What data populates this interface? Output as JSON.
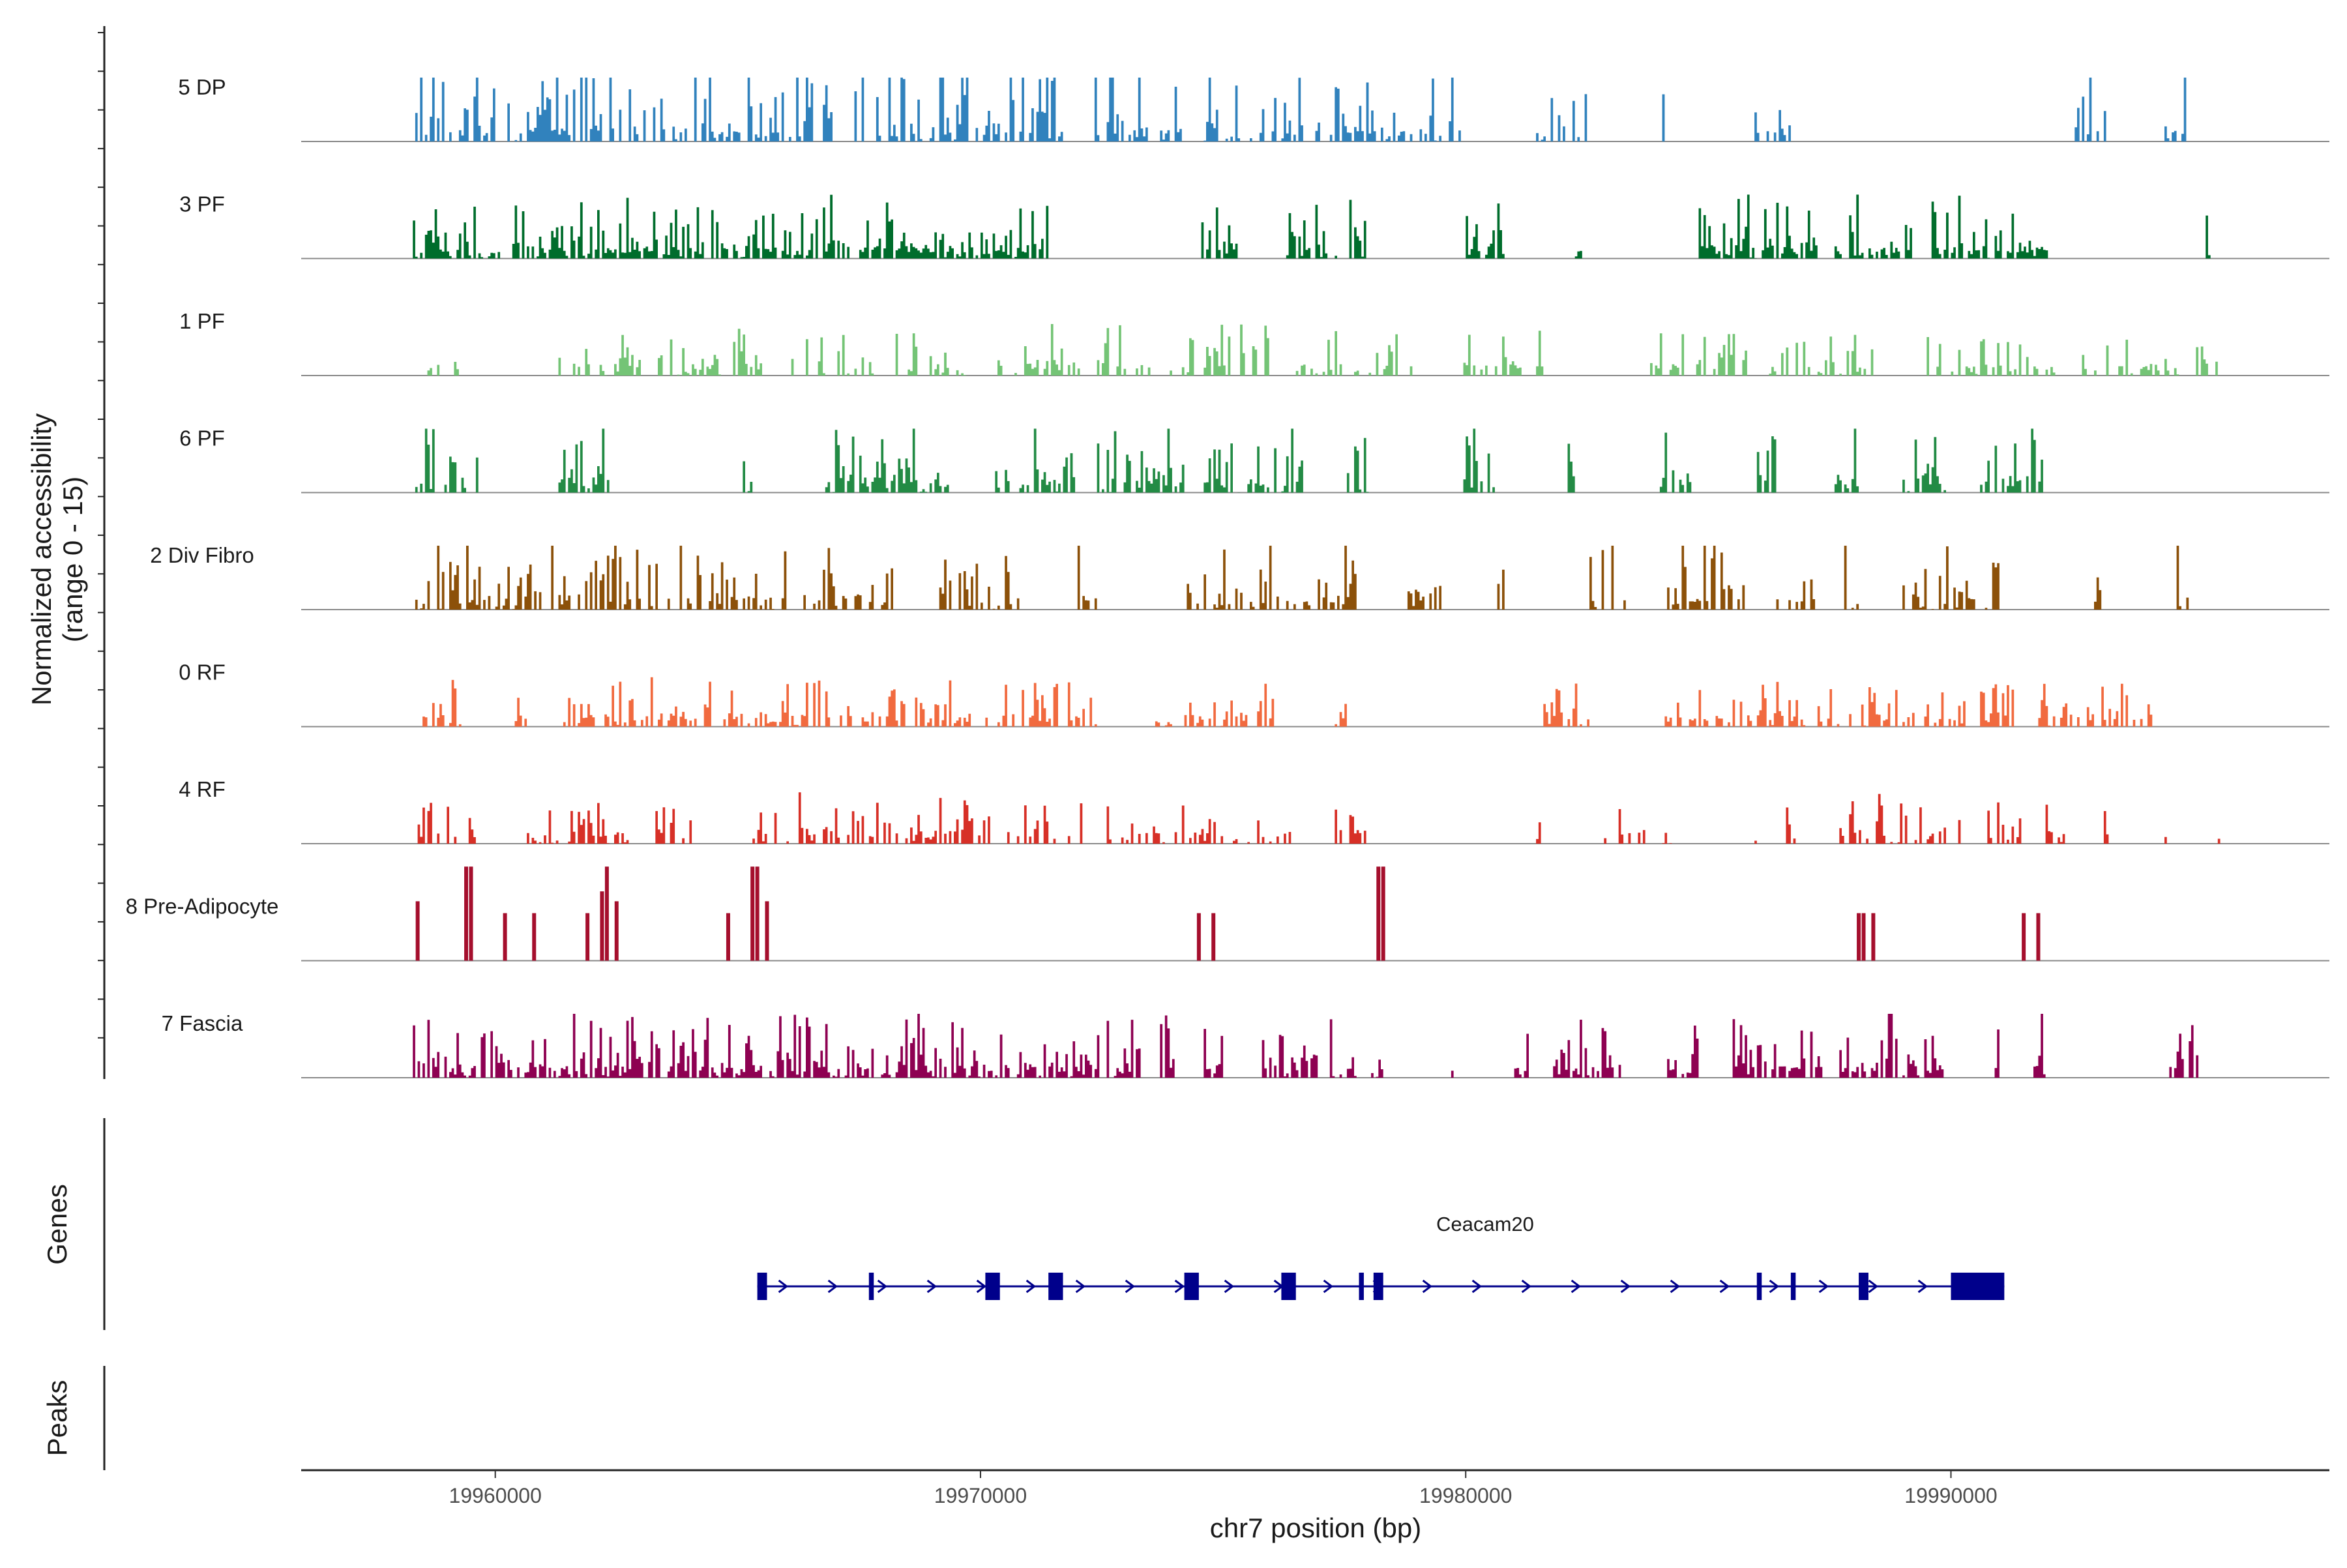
{
  "chart_data": {
    "type": "coverage",
    "title": "",
    "xlabel": "chr7 position (bp)",
    "ylabel_line1": "Normalized accessibility",
    "ylabel_line2": "(range 0 - 15)",
    "yrange": [
      0,
      15
    ],
    "xlim": [
      19956000,
      19997800
    ],
    "x_ticks": [
      19960000,
      19970000,
      19980000,
      19990000
    ],
    "x_tick_labels": [
      "19960000",
      "19970000",
      "19980000",
      "19990000"
    ],
    "panel_labels": {
      "genes": "Genes",
      "peaks": "Peaks"
    },
    "tracks": [
      {
        "name": "5 DP",
        "color": "#3182bd",
        "seed": 11,
        "density": 0.55,
        "peak_max": 9.5,
        "regions": [
          [
            19958300,
            19967000
          ],
          [
            19967400,
            19971700
          ],
          [
            19972000,
            19974200
          ],
          [
            19974600,
            19976800
          ],
          [
            19976900,
            19979900
          ],
          [
            19981400,
            19982600
          ],
          [
            19984000,
            19984200
          ],
          [
            19985700,
            19986700
          ],
          [
            19992400,
            19993200
          ],
          [
            19994400,
            19994900
          ]
        ]
      },
      {
        "name": "3 PF",
        "color": "#006d2c",
        "seed": 23,
        "density": 0.75,
        "peak_max": 6.0,
        "regions": [
          [
            19958300,
            19964800
          ],
          [
            19964900,
            19967300
          ],
          [
            19967500,
            19971400
          ],
          [
            19974500,
            19975300
          ],
          [
            19976300,
            19978000
          ],
          [
            19980000,
            19980800
          ],
          [
            19982200,
            19982400
          ],
          [
            19984800,
            19987300
          ],
          [
            19987600,
            19989200
          ],
          [
            19989600,
            19992000
          ],
          [
            19995200,
            19995400
          ]
        ]
      },
      {
        "name": "1 PF",
        "color": "#74c476",
        "seed": 37,
        "density": 0.45,
        "peak_max": 4.5,
        "regions": [
          [
            19958500,
            19959300
          ],
          [
            19961200,
            19966300
          ],
          [
            19966400,
            19969800
          ],
          [
            19970100,
            19973500
          ],
          [
            19973800,
            19976000
          ],
          [
            19976400,
            19979000
          ],
          [
            19979900,
            19981800
          ],
          [
            19983800,
            19985800
          ],
          [
            19986200,
            19988600
          ],
          [
            19989500,
            19992300
          ],
          [
            19992700,
            19995500
          ]
        ]
      },
      {
        "name": "6 PF",
        "color": "#238b45",
        "seed": 41,
        "density": 0.6,
        "peak_max": 7.5,
        "regions": [
          [
            19958300,
            19959700
          ],
          [
            19961300,
            19962500
          ],
          [
            19965100,
            19965300
          ],
          [
            19966800,
            19969500
          ],
          [
            19970300,
            19972000
          ],
          [
            19972400,
            19974200
          ],
          [
            19974600,
            19976700
          ],
          [
            19977500,
            19978000
          ],
          [
            19979900,
            19980600
          ],
          [
            19982100,
            19982300
          ],
          [
            19984000,
            19984700
          ],
          [
            19986000,
            19986400
          ],
          [
            19987600,
            19988200
          ],
          [
            19989000,
            19989900
          ],
          [
            19990600,
            19991900
          ]
        ]
      },
      {
        "name": "2 Div Fibro",
        "color": "#8c510a",
        "seed": 53,
        "density": 0.55,
        "peak_max": 7.5,
        "regions": [
          [
            19958300,
            19966000
          ],
          [
            19966300,
            19968200
          ],
          [
            19969100,
            19970800
          ],
          [
            19972000,
            19972600
          ],
          [
            19974200,
            19977800
          ],
          [
            19978800,
            19979500
          ],
          [
            19980600,
            19980800
          ],
          [
            19982500,
            19983300
          ],
          [
            19984100,
            19985800
          ],
          [
            19986400,
            19987300
          ],
          [
            19987800,
            19988100
          ],
          [
            19989000,
            19991000
          ],
          [
            19992800,
            19993100
          ],
          [
            19994600,
            19994900
          ]
        ]
      },
      {
        "name": "0 RF",
        "color": "#f16a3f",
        "seed": 67,
        "density": 0.55,
        "peak_max": 4.5,
        "regions": [
          [
            19958500,
            19959300
          ],
          [
            19960400,
            19960700
          ],
          [
            19961400,
            19967800
          ],
          [
            19967900,
            19969800
          ],
          [
            19970100,
            19971700
          ],
          [
            19971800,
            19972400
          ],
          [
            19973600,
            19976100
          ],
          [
            19977300,
            19977600
          ],
          [
            19981500,
            19982600
          ],
          [
            19984000,
            19987000
          ],
          [
            19987200,
            19989300
          ],
          [
            19989400,
            19990300
          ],
          [
            19990600,
            19991300
          ],
          [
            19991800,
            19994300
          ]
        ]
      },
      {
        "name": "4 RF",
        "color": "#d73027",
        "seed": 79,
        "density": 0.5,
        "peak_max": 4.5,
        "regions": [
          [
            19958300,
            19959600
          ],
          [
            19960600,
            19962800
          ],
          [
            19963300,
            19964300
          ],
          [
            19965300,
            19967600
          ],
          [
            19967700,
            19969000
          ],
          [
            19969000,
            19972100
          ],
          [
            19972500,
            19976400
          ],
          [
            19977300,
            19978000
          ],
          [
            19978600,
            19978800
          ],
          [
            19981400,
            19981600
          ],
          [
            19982800,
            19983700
          ],
          [
            19984000,
            19984300
          ],
          [
            19985800,
            19986000
          ],
          [
            19986600,
            19986800
          ],
          [
            19987700,
            19990200
          ],
          [
            19990600,
            19991500
          ],
          [
            19991800,
            19992400
          ],
          [
            19992900,
            19993300
          ],
          [
            19994400,
            19994500
          ],
          [
            19995500,
            19995700
          ]
        ]
      },
      {
        "name": "8 Pre-Adipocyte",
        "color": "#a50f2d",
        "seed": 0,
        "density": 0,
        "peak_max": 0,
        "bars": [
          [
            19958400,
            60
          ],
          [
            19959400,
            95
          ],
          [
            19959500,
            95
          ],
          [
            19960200,
            48
          ],
          [
            19960800,
            48
          ],
          [
            19961900,
            48
          ],
          [
            19962200,
            70
          ],
          [
            19962300,
            95
          ],
          [
            19962500,
            60
          ],
          [
            19964800,
            48
          ],
          [
            19965300,
            95
          ],
          [
            19965400,
            95
          ],
          [
            19965600,
            60
          ],
          [
            19974500,
            48
          ],
          [
            19974800,
            48
          ],
          [
            19978200,
            95
          ],
          [
            19978300,
            95
          ],
          [
            19988100,
            48
          ],
          [
            19988200,
            48
          ],
          [
            19988400,
            48
          ],
          [
            19991500,
            48
          ],
          [
            19991800,
            48
          ]
        ]
      },
      {
        "name": "7 Fascia",
        "color": "#8e0152",
        "seed": 97,
        "density": 0.7,
        "peak_max": 6.5,
        "regions": [
          [
            19958300,
            19966900
          ],
          [
            19966900,
            19970600
          ],
          [
            19970700,
            19973300
          ],
          [
            19973700,
            19974000
          ],
          [
            19974600,
            19975000
          ],
          [
            19975800,
            19977800
          ],
          [
            19978000,
            19978300
          ],
          [
            19979500,
            19979800
          ],
          [
            19981000,
            19981300
          ],
          [
            19981800,
            19983200
          ],
          [
            19984100,
            19984800
          ],
          [
            19985500,
            19987400
          ],
          [
            19987700,
            19989900
          ],
          [
            19990900,
            19991000
          ],
          [
            19991700,
            19992000
          ],
          [
            19994500,
            19995200
          ]
        ]
      }
    ],
    "genes": [
      {
        "name": "Ceacam20",
        "strand": "+",
        "start": 19965400,
        "end": 19991100,
        "exons": [
          [
            19965400,
            19965600
          ],
          [
            19967700,
            19967800
          ],
          [
            19970100,
            19970400
          ],
          [
            19971400,
            19971700
          ],
          [
            19974200,
            19974500
          ],
          [
            19976200,
            19976500
          ],
          [
            19977800,
            19977900
          ],
          [
            19978100,
            19978300
          ],
          [
            19986000,
            19986100
          ],
          [
            19986700,
            19986800
          ],
          [
            19988100,
            19988300
          ],
          [
            19990000,
            19991100
          ]
        ]
      }
    ],
    "peaks": []
  }
}
